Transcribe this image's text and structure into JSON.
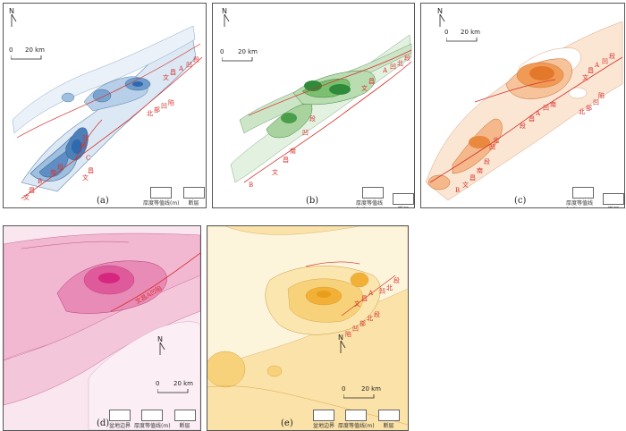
{
  "panels": [
    {
      "id": "a",
      "label": "(a)",
      "north": "N",
      "scale": [
        "0",
        "20 km"
      ],
      "legend": [
        "厚度等值线(m)",
        "断层"
      ],
      "annotations": [
        "昌",
        "A",
        "凹",
        "段",
        "文",
        "北",
        "部",
        "凹",
        "陷",
        "B",
        "南",
        "段",
        "昌",
        "文",
        "C",
        "凹",
        "段",
        "昌",
        "文"
      ],
      "colors": {
        "fill": "#2e6aad",
        "light": "#dce8f4"
      }
    },
    {
      "id": "b",
      "label": "(b)",
      "north": "N",
      "scale": [
        "0",
        "20 km"
      ],
      "legend": [
        "厚度等值线(m)",
        "断层"
      ],
      "annotations": [
        "A",
        "凹",
        "北",
        "段",
        "昌",
        "文",
        "段",
        "凹",
        "南",
        "昌",
        "文",
        "B"
      ],
      "colors": {
        "fill": "#2f8a3a",
        "light": "#e3f1e0"
      }
    },
    {
      "id": "c",
      "label": "(c)",
      "north": "N",
      "scale": [
        "0",
        "20 km"
      ],
      "legend": [
        "厚度等值线(m)",
        "断层"
      ],
      "annotations": [
        "昌",
        "A",
        "凹",
        "段",
        "文",
        "昌",
        "A",
        "凹",
        "南",
        "段",
        "北",
        "部",
        "凹",
        "陷",
        "段",
        "北",
        "凹",
        "南",
        "昌",
        "文",
        "B"
      ],
      "colors": {
        "fill": "#e4782a",
        "light": "#fbe6d4"
      }
    },
    {
      "id": "d",
      "label": "(d)",
      "north": "N",
      "scale": [
        "0",
        "20 km"
      ],
      "legend": [
        "盆地边界",
        "厚度等值线(m)",
        "断层"
      ],
      "annotations": [
        "文昌A凹陷"
      ],
      "colors": {
        "fill": "#d6267f",
        "light": "#f8d7e6"
      }
    },
    {
      "id": "e",
      "label": "(e)",
      "north": "N",
      "scale": [
        "0",
        "20 km"
      ],
      "legend": [
        "盆地边界",
        "厚度等值线(m)",
        "断层"
      ],
      "annotations": [
        "段",
        "A",
        "北",
        "凹",
        "昌",
        "文",
        "段",
        "北",
        "部",
        "凹",
        "陷"
      ],
      "colors": {
        "fill": "#f2b136",
        "light": "#fdf0c8"
      }
    }
  ]
}
